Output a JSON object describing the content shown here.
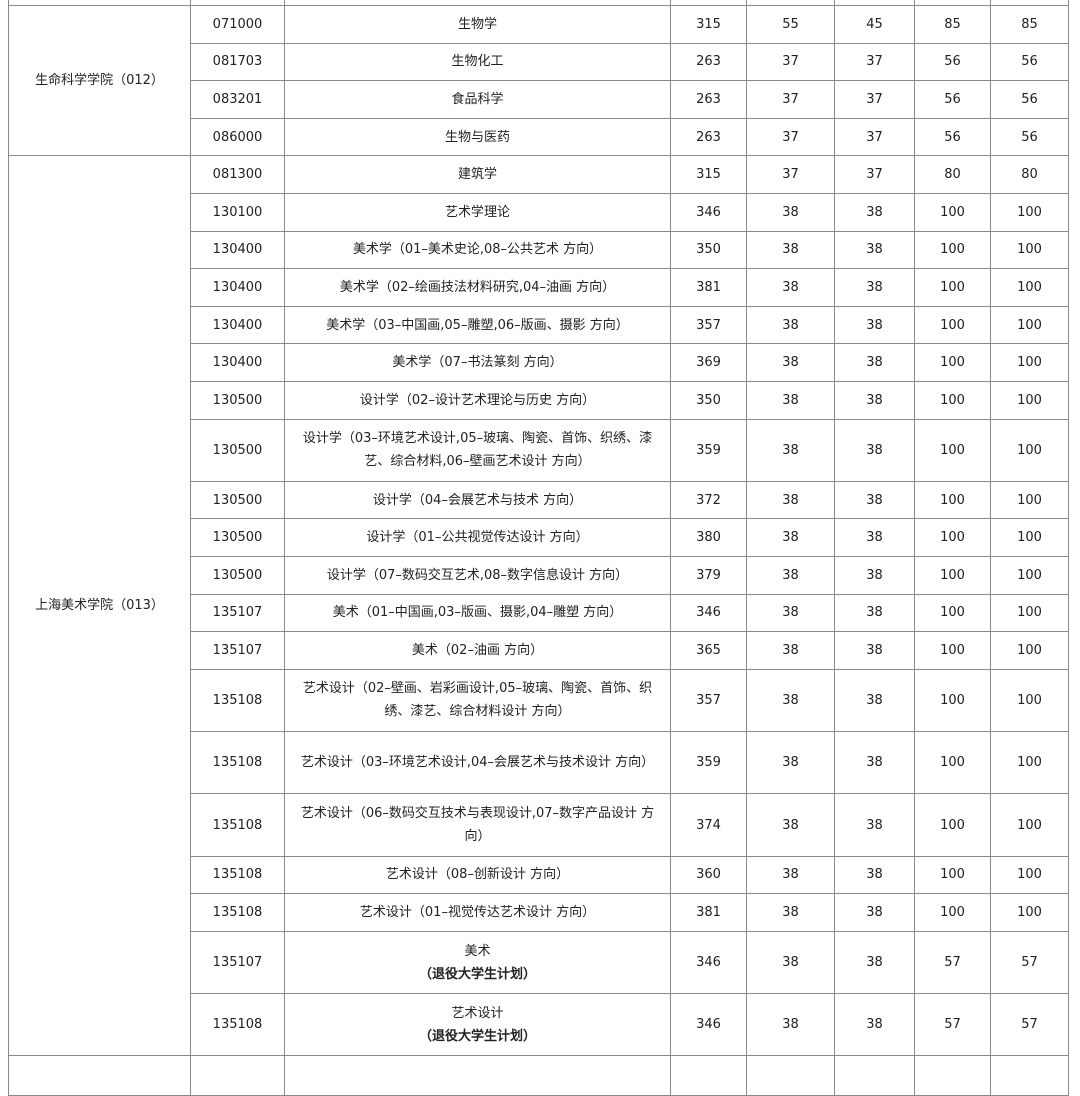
{
  "colleges": [
    {
      "name": "生命科学学院（012）",
      "rows": [
        {
          "code": "071000",
          "major": "生物学",
          "total": "315",
          "s1": "55",
          "s2": "45",
          "s3": "85",
          "s4": "85"
        },
        {
          "code": "081703",
          "major": "生物化工",
          "total": "263",
          "s1": "37",
          "s2": "37",
          "s3": "56",
          "s4": "56"
        },
        {
          "code": "083201",
          "major": "食品科学",
          "total": "263",
          "s1": "37",
          "s2": "37",
          "s3": "56",
          "s4": "56"
        },
        {
          "code": "086000",
          "major": "生物与医药",
          "total": "263",
          "s1": "37",
          "s2": "37",
          "s3": "56",
          "s4": "56"
        }
      ]
    },
    {
      "name": "上海美术学院（013）",
      "rows": [
        {
          "code": "081300",
          "major": "建筑学",
          "total": "315",
          "s1": "37",
          "s2": "37",
          "s3": "80",
          "s4": "80"
        },
        {
          "code": "130100",
          "major": "艺术学理论",
          "total": "346",
          "s1": "38",
          "s2": "38",
          "s3": "100",
          "s4": "100"
        },
        {
          "code": "130400",
          "major": "美术学（01–美术史论,08–公共艺术 方向）",
          "total": "350",
          "s1": "38",
          "s2": "38",
          "s3": "100",
          "s4": "100"
        },
        {
          "code": "130400",
          "major": "美术学（02–绘画技法材料研究,04–油画 方向）",
          "total": "381",
          "s1": "38",
          "s2": "38",
          "s3": "100",
          "s4": "100"
        },
        {
          "code": "130400",
          "major": "美术学（03–中国画,05–雕塑,06–版画、摄影 方向）",
          "total": "357",
          "s1": "38",
          "s2": "38",
          "s3": "100",
          "s4": "100"
        },
        {
          "code": "130400",
          "major": "美术学（07–书法篆刻 方向）",
          "total": "369",
          "s1": "38",
          "s2": "38",
          "s3": "100",
          "s4": "100"
        },
        {
          "code": "130500",
          "major": "设计学（02–设计艺术理论与历史 方向）",
          "total": "350",
          "s1": "38",
          "s2": "38",
          "s3": "100",
          "s4": "100"
        },
        {
          "code": "130500",
          "major": "设计学（03–环境艺术设计,05–玻璃、陶瓷、首饰、织绣、漆艺、综合材料,06–壁画艺术设计 方向）",
          "total": "359",
          "s1": "38",
          "s2": "38",
          "s3": "100",
          "s4": "100",
          "double": true
        },
        {
          "code": "130500",
          "major": "设计学（04–会展艺术与技术 方向）",
          "total": "372",
          "s1": "38",
          "s2": "38",
          "s3": "100",
          "s4": "100"
        },
        {
          "code": "130500",
          "major": "设计学（01–公共视觉传达设计 方向）",
          "total": "380",
          "s1": "38",
          "s2": "38",
          "s3": "100",
          "s4": "100"
        },
        {
          "code": "130500",
          "major": "设计学（07–数码交互艺术,08–数字信息设计 方向）",
          "total": "379",
          "s1": "38",
          "s2": "38",
          "s3": "100",
          "s4": "100"
        },
        {
          "code": "135107",
          "major": "美术（01–中国画,03–版画、摄影,04–雕塑 方向）",
          "total": "346",
          "s1": "38",
          "s2": "38",
          "s3": "100",
          "s4": "100"
        },
        {
          "code": "135107",
          "major": "美术（02–油画 方向）",
          "total": "365",
          "s1": "38",
          "s2": "38",
          "s3": "100",
          "s4": "100"
        },
        {
          "code": "135108",
          "major": "艺术设计（02–壁画、岩彩画设计,05–玻璃、陶瓷、首饰、织绣、漆艺、综合材料设计 方向）",
          "total": "357",
          "s1": "38",
          "s2": "38",
          "s3": "100",
          "s4": "100",
          "double": true
        },
        {
          "code": "135108",
          "major": "艺术设计（03–环境艺术设计,04–会展艺术与技术设计 方向）",
          "total": "359",
          "s1": "38",
          "s2": "38",
          "s3": "100",
          "s4": "100",
          "double": true
        },
        {
          "code": "135108",
          "major": "艺术设计（06–数码交互技术与表现设计,07–数字产品设计 方向）",
          "total": "374",
          "s1": "38",
          "s2": "38",
          "s3": "100",
          "s4": "100",
          "double": true
        },
        {
          "code": "135108",
          "major": "艺术设计（08–创新设计 方向）",
          "total": "360",
          "s1": "38",
          "s2": "38",
          "s3": "100",
          "s4": "100"
        },
        {
          "code": "135108",
          "major": "艺术设计（01–视觉传达艺术设计 方向）",
          "total": "381",
          "s1": "38",
          "s2": "38",
          "s3": "100",
          "s4": "100"
        },
        {
          "code": "135107",
          "major": "美术",
          "major2": "（退役大学生计划）",
          "total": "346",
          "s1": "38",
          "s2": "38",
          "s3": "57",
          "s4": "57",
          "double": true
        },
        {
          "code": "135108",
          "major": "艺术设计",
          "major2": "（退役大学生计划）",
          "total": "346",
          "s1": "38",
          "s2": "38",
          "s3": "57",
          "s4": "57",
          "double": true
        }
      ]
    }
  ]
}
